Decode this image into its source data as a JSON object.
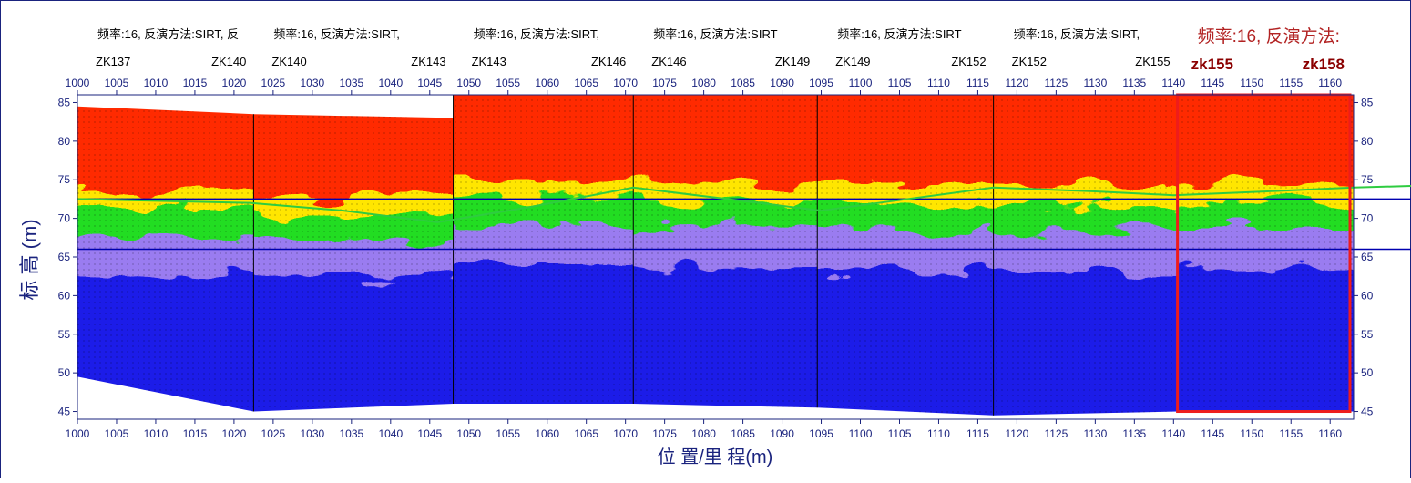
{
  "chart_data": {
    "type": "heatmap",
    "xlabel": "位 置/里 程(m)",
    "ylabel": "标 高 (m)",
    "xlim": [
      1000,
      1163
    ],
    "ylim": [
      44,
      86
    ],
    "x_ticks": [
      1000,
      1005,
      1010,
      1015,
      1020,
      1025,
      1030,
      1035,
      1040,
      1045,
      1050,
      1055,
      1060,
      1065,
      1070,
      1075,
      1080,
      1085,
      1090,
      1095,
      1100,
      1105,
      1110,
      1115,
      1120,
      1125,
      1130,
      1135,
      1140,
      1145,
      1150,
      1155,
      1160
    ],
    "y_ticks": [
      45,
      50,
      55,
      60,
      65,
      70,
      75,
      80,
      85
    ],
    "colors": {
      "high": "#ff2a00",
      "mid_high": "#ffe600",
      "mid": "#22dd22",
      "mid_low": "#9a7cf0",
      "low": "#1a1ae8",
      "axis": "#1a237e",
      "highlight": "#ee1c1c",
      "boundary": "#2ecc40",
      "hline": "#0000b0"
    },
    "reference_lines": [
      72.5,
      66
    ],
    "panels": [
      {
        "x_start": 1000,
        "x_end": 1022.5,
        "title": "频率:16, 反演方法:SIRT, 反",
        "hole_left": "ZK137",
        "hole_right": "ZK140",
        "top": [
          84.5,
          83.5
        ],
        "bottom": [
          49.5,
          45
        ]
      },
      {
        "x_start": 1022.5,
        "x_end": 1048,
        "title": "频率:16, 反演方法:SIRT,",
        "hole_left": "ZK140",
        "hole_right": "ZK143",
        "top": [
          83.5,
          83
        ],
        "bottom": [
          45,
          46
        ]
      },
      {
        "x_start": 1048,
        "x_end": 1071,
        "title": "频率:16, 反演方法:SIRT,",
        "hole_left": "ZK143",
        "hole_right": "ZK146",
        "top": [
          86,
          86
        ],
        "bottom": [
          46,
          46
        ]
      },
      {
        "x_start": 1071,
        "x_end": 1094.5,
        "title": "频率:16, 反演方法:SIRT",
        "hole_left": "ZK146",
        "hole_right": "ZK149",
        "top": [
          86,
          86
        ],
        "bottom": [
          46,
          45.5
        ]
      },
      {
        "x_start": 1094.5,
        "x_end": 1117,
        "title": "频率:16, 反演方法:SIRT",
        "hole_left": "ZK149",
        "hole_right": "ZK152",
        "top": [
          86,
          86
        ],
        "bottom": [
          45.5,
          44.5
        ]
      },
      {
        "x_start": 1117,
        "x_end": 1140.5,
        "title": "频率:16, 反演方法:SIRT,",
        "hole_left": "ZK152",
        "hole_right": "ZK155",
        "top": [
          86,
          86
        ],
        "bottom": [
          44.5,
          45
        ]
      },
      {
        "x_start": 1140.5,
        "x_end": 1163,
        "title": "频率:16, 反演方法:",
        "hole_left": "zk155",
        "hole_right": "zk158",
        "top": [
          86,
          86
        ],
        "bottom": [
          45,
          45
        ],
        "highlighted": true
      }
    ],
    "bands": [
      {
        "level": "high",
        "top_rel": 0.0,
        "bottom_rel": 0.28
      },
      {
        "level": "mid_high",
        "top_rel": 0.28,
        "bottom_rel": 0.34
      },
      {
        "level": "mid",
        "top_rel": 0.34,
        "bottom_rel": 0.42
      },
      {
        "level": "mid_low",
        "top_rel": 0.42,
        "bottom_rel": 0.55
      },
      {
        "level": "low",
        "top_rel": 0.55,
        "bottom_rel": 1.0
      }
    ],
    "green_boundary": [
      [
        1000,
        72.5
      ],
      [
        1022,
        72
      ],
      [
        1034,
        71
      ],
      [
        1046,
        69.5
      ],
      [
        1058,
        71.5
      ],
      [
        1071,
        74
      ],
      [
        1083,
        72.5
      ],
      [
        1095,
        71
      ],
      [
        1106,
        72.5
      ],
      [
        1117,
        74
      ],
      [
        1130,
        73.5
      ],
      [
        1140,
        73
      ],
      [
        1152,
        73.5
      ],
      [
        1163,
        74
      ]
    ]
  }
}
